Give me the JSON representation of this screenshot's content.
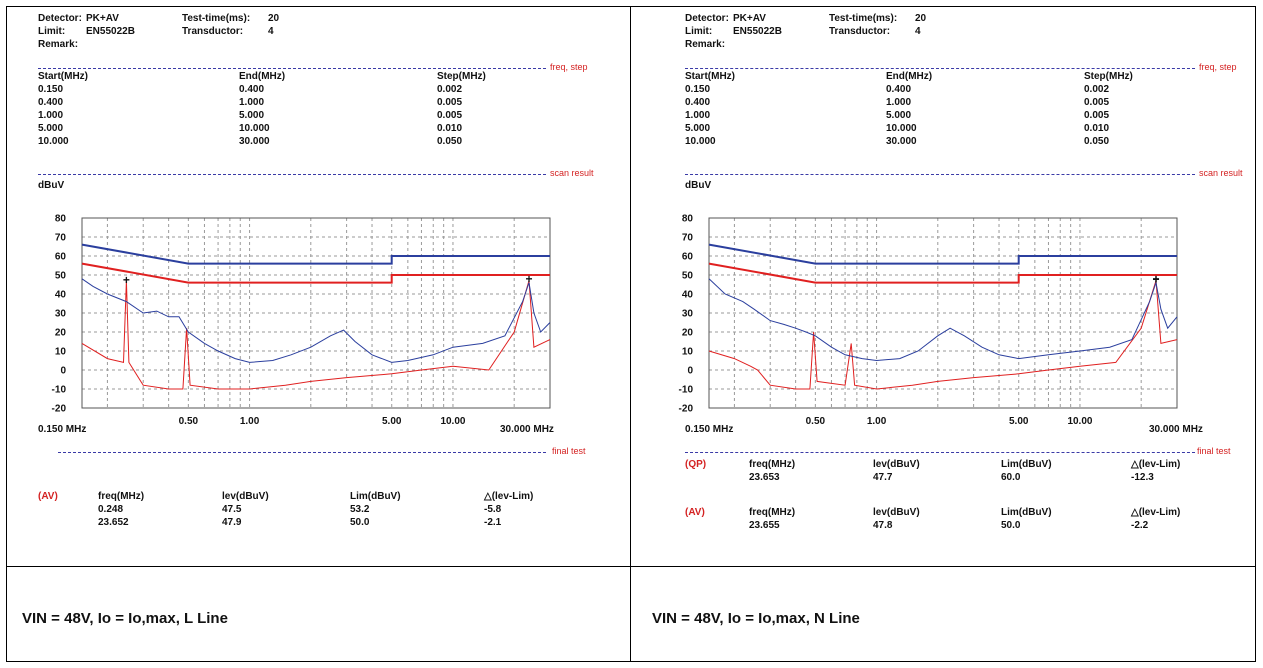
{
  "panels": [
    {
      "header": {
        "detector_label": "Detector:",
        "detector": "PK+AV",
        "testtime_label": "Test-time(ms):",
        "testtime": "20",
        "limit_label": "Limit:",
        "limit": "EN55022B",
        "transductor_label": "Transductor:",
        "transductor": "4",
        "remark_label": "Remark:"
      },
      "sections": {
        "freq_step": "freq, step",
        "scan_result": "scan result",
        "final_test": "final test"
      },
      "step_table": {
        "headers": [
          "Start(MHz)",
          "End(MHz)",
          "Step(MHz)"
        ],
        "rows": [
          [
            "0.150",
            "0.400",
            "0.002"
          ],
          [
            "0.400",
            "1.000",
            "0.005"
          ],
          [
            "1.000",
            "5.000",
            "0.005"
          ],
          [
            "5.000",
            "10.000",
            "0.010"
          ],
          [
            "10.000",
            "30.000",
            "0.050"
          ]
        ]
      },
      "unit": "dBuV",
      "freq_start": "0.150 MHz",
      "freq_end": "30.000 MHz",
      "results": [
        {
          "tag": "(AV)",
          "headers": [
            "freq(MHz)",
            "lev(dBuV)",
            "Lim(dBuV)",
            "△(lev-Lim)"
          ],
          "rows": [
            [
              "0.248",
              "47.5",
              "53.2",
              "-5.8"
            ],
            [
              "23.652",
              "47.9",
              "50.0",
              "-2.1"
            ]
          ]
        }
      ],
      "caption": "VIN = 48V, Io = Io,max, L Line"
    },
    {
      "header": {
        "detector_label": "Detector:",
        "detector": "PK+AV",
        "testtime_label": "Test-time(ms):",
        "testtime": "20",
        "limit_label": "Limit:",
        "limit": "EN55022B",
        "transductor_label": "Transductor:",
        "transductor": "4",
        "remark_label": "Remark:"
      },
      "sections": {
        "freq_step": "freq, step",
        "scan_result": "scan result",
        "final_test": "final test"
      },
      "step_table": {
        "headers": [
          "Start(MHz)",
          "End(MHz)",
          "Step(MHz)"
        ],
        "rows": [
          [
            "0.150",
            "0.400",
            "0.002"
          ],
          [
            "0.400",
            "1.000",
            "0.005"
          ],
          [
            "1.000",
            "5.000",
            "0.005"
          ],
          [
            "5.000",
            "10.000",
            "0.010"
          ],
          [
            "10.000",
            "30.000",
            "0.050"
          ]
        ]
      },
      "unit": "dBuV",
      "freq_start": "0.150 MHz",
      "freq_end": "30.000 MHz",
      "results": [
        {
          "tag": "(QP)",
          "headers": [
            "freq(MHz)",
            "lev(dBuV)",
            "Lim(dBuV)",
            "△(lev-Lim)"
          ],
          "rows": [
            [
              "23.653",
              "47.7",
              "60.0",
              "-12.3"
            ]
          ]
        },
        {
          "tag": "(AV)",
          "headers": [
            "freq(MHz)",
            "lev(dBuV)",
            "Lim(dBuV)",
            "△(lev-Lim)"
          ],
          "rows": [
            [
              "23.655",
              "47.8",
              "50.0",
              "-2.2"
            ]
          ]
        }
      ],
      "caption": "VIN = 48V, Io = Io,max, N Line"
    }
  ],
  "chart_data": [
    {
      "type": "line",
      "x_scale": "log",
      "xlim": [
        0.15,
        30
      ],
      "ylim": [
        -20,
        80
      ],
      "y_ticks": [
        80,
        70,
        60,
        50,
        40,
        30,
        20,
        10,
        0,
        -10,
        -20
      ],
      "x_tick_labels": [
        {
          "x": 0.5,
          "label": "0.50"
        },
        {
          "x": 1,
          "label": "1.00"
        },
        {
          "x": 5,
          "label": "5.00"
        },
        {
          "x": 10,
          "label": "10.00"
        }
      ],
      "grid": true,
      "colors": {
        "qp_limit": "#2b3f9e",
        "av_limit": "#e02020",
        "peak": "#2b3f9e",
        "average": "#e02020",
        "marker": "#111111"
      },
      "limit_qp": [
        [
          0.15,
          66
        ],
        [
          0.5,
          56
        ],
        [
          5,
          56
        ],
        [
          5,
          60
        ],
        [
          30,
          60
        ]
      ],
      "limit_av": [
        [
          0.15,
          56
        ],
        [
          0.5,
          46
        ],
        [
          5,
          46
        ],
        [
          5,
          50
        ],
        [
          30,
          50
        ]
      ],
      "peak_trace": [
        [
          0.15,
          48
        ],
        [
          0.17,
          44
        ],
        [
          0.2,
          40
        ],
        [
          0.248,
          36
        ],
        [
          0.3,
          30
        ],
        [
          0.35,
          31
        ],
        [
          0.4,
          28
        ],
        [
          0.45,
          28
        ],
        [
          0.5,
          20
        ],
        [
          0.6,
          14
        ],
        [
          0.7,
          10
        ],
        [
          0.85,
          6
        ],
        [
          1,
          4
        ],
        [
          1.3,
          5
        ],
        [
          1.6,
          8
        ],
        [
          2,
          12
        ],
        [
          2.5,
          18
        ],
        [
          2.9,
          21
        ],
        [
          3.3,
          15
        ],
        [
          4,
          8
        ],
        [
          5,
          4
        ],
        [
          6,
          5
        ],
        [
          8,
          8
        ],
        [
          10,
          12
        ],
        [
          14,
          14
        ],
        [
          18,
          18
        ],
        [
          22,
          36
        ],
        [
          23.65,
          46
        ],
        [
          25,
          30
        ],
        [
          27,
          20
        ],
        [
          30,
          25
        ]
      ],
      "average_trace": [
        [
          0.15,
          14
        ],
        [
          0.2,
          6
        ],
        [
          0.24,
          4
        ],
        [
          0.248,
          47
        ],
        [
          0.255,
          4
        ],
        [
          0.3,
          -8
        ],
        [
          0.4,
          -10
        ],
        [
          0.47,
          -10
        ],
        [
          0.49,
          22
        ],
        [
          0.51,
          -8
        ],
        [
          0.7,
          -10
        ],
        [
          1,
          -10
        ],
        [
          1.5,
          -8
        ],
        [
          2,
          -6
        ],
        [
          3,
          -4
        ],
        [
          5,
          -2
        ],
        [
          7,
          0
        ],
        [
          10,
          2
        ],
        [
          15,
          0
        ],
        [
          20,
          20
        ],
        [
          23.65,
          47
        ],
        [
          25,
          12
        ],
        [
          30,
          16
        ]
      ],
      "markers": [
        [
          0.248,
          47.5
        ],
        [
          23.652,
          47.9
        ]
      ]
    },
    {
      "type": "line",
      "x_scale": "log",
      "xlim": [
        0.15,
        30
      ],
      "ylim": [
        -20,
        80
      ],
      "y_ticks": [
        80,
        70,
        60,
        50,
        40,
        30,
        20,
        10,
        0,
        -10,
        -20
      ],
      "x_tick_labels": [
        {
          "x": 0.5,
          "label": "0.50"
        },
        {
          "x": 1,
          "label": "1.00"
        },
        {
          "x": 5,
          "label": "5.00"
        },
        {
          "x": 10,
          "label": "10.00"
        }
      ],
      "grid": true,
      "colors": {
        "qp_limit": "#2b3f9e",
        "av_limit": "#e02020",
        "peak": "#2b3f9e",
        "average": "#e02020",
        "marker": "#111111"
      },
      "limit_qp": [
        [
          0.15,
          66
        ],
        [
          0.5,
          56
        ],
        [
          5,
          56
        ],
        [
          5,
          60
        ],
        [
          30,
          60
        ]
      ],
      "limit_av": [
        [
          0.15,
          56
        ],
        [
          0.5,
          46
        ],
        [
          5,
          46
        ],
        [
          5,
          50
        ],
        [
          30,
          50
        ]
      ],
      "peak_trace": [
        [
          0.15,
          48
        ],
        [
          0.18,
          40
        ],
        [
          0.22,
          36
        ],
        [
          0.25,
          32
        ],
        [
          0.3,
          26
        ],
        [
          0.35,
          24
        ],
        [
          0.4,
          22
        ],
        [
          0.45,
          20
        ],
        [
          0.5,
          18
        ],
        [
          0.6,
          12
        ],
        [
          0.7,
          8
        ],
        [
          0.85,
          6
        ],
        [
          1,
          5
        ],
        [
          1.3,
          6
        ],
        [
          1.6,
          10
        ],
        [
          2,
          18
        ],
        [
          2.3,
          22
        ],
        [
          2.7,
          18
        ],
        [
          3.3,
          12
        ],
        [
          4,
          8
        ],
        [
          5,
          6
        ],
        [
          7,
          8
        ],
        [
          10,
          10
        ],
        [
          14,
          12
        ],
        [
          18,
          16
        ],
        [
          22,
          36
        ],
        [
          23.65,
          46
        ],
        [
          25,
          32
        ],
        [
          27,
          22
        ],
        [
          30,
          28
        ]
      ],
      "average_trace": [
        [
          0.15,
          10
        ],
        [
          0.2,
          6
        ],
        [
          0.24,
          2
        ],
        [
          0.26,
          0
        ],
        [
          0.3,
          -8
        ],
        [
          0.4,
          -10
        ],
        [
          0.47,
          -10
        ],
        [
          0.49,
          20
        ],
        [
          0.51,
          -6
        ],
        [
          0.7,
          -8
        ],
        [
          0.75,
          14
        ],
        [
          0.78,
          -8
        ],
        [
          1,
          -10
        ],
        [
          1.5,
          -8
        ],
        [
          2,
          -6
        ],
        [
          3,
          -4
        ],
        [
          5,
          -2
        ],
        [
          7,
          0
        ],
        [
          10,
          2
        ],
        [
          15,
          4
        ],
        [
          20,
          22
        ],
        [
          23.65,
          47
        ],
        [
          25,
          14
        ],
        [
          30,
          16
        ]
      ],
      "markers": [
        [
          23.653,
          47.7
        ],
        [
          23.655,
          47.8
        ]
      ]
    }
  ]
}
